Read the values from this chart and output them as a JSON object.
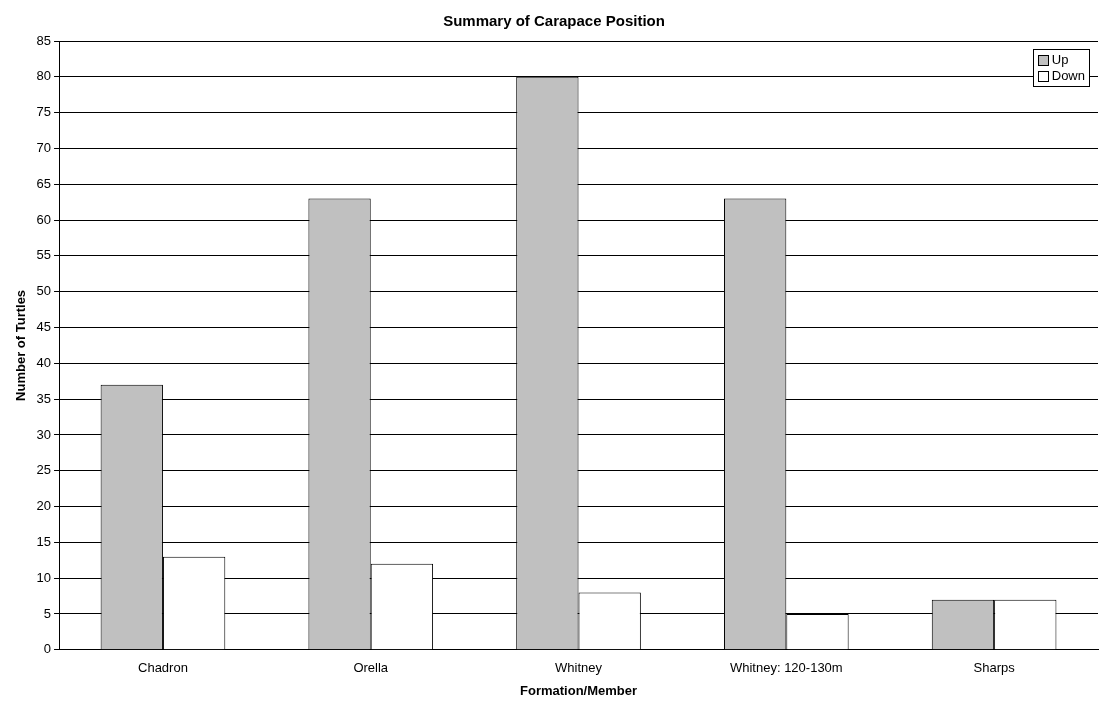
{
  "chart_data": {
    "type": "bar",
    "title": "Summary of Carapace Position",
    "xlabel": "Formation/Member",
    "ylabel": "Number of Turtles",
    "categories": [
      "Chadron",
      "Orella",
      "Whitney",
      "Whitney: 120-130m",
      "Sharps"
    ],
    "series": [
      {
        "name": "Up",
        "color": "#c0c0c0",
        "values": [
          37,
          63,
          80,
          63,
          7
        ]
      },
      {
        "name": "Down",
        "color": "#ffffff",
        "values": [
          13,
          12,
          8,
          5,
          7
        ]
      }
    ],
    "ylim": [
      0,
      85
    ],
    "yticks": [
      0,
      5,
      10,
      15,
      20,
      25,
      30,
      35,
      40,
      45,
      50,
      55,
      60,
      65,
      70,
      75,
      80,
      85
    ],
    "grid": "y",
    "legend": "top right"
  }
}
